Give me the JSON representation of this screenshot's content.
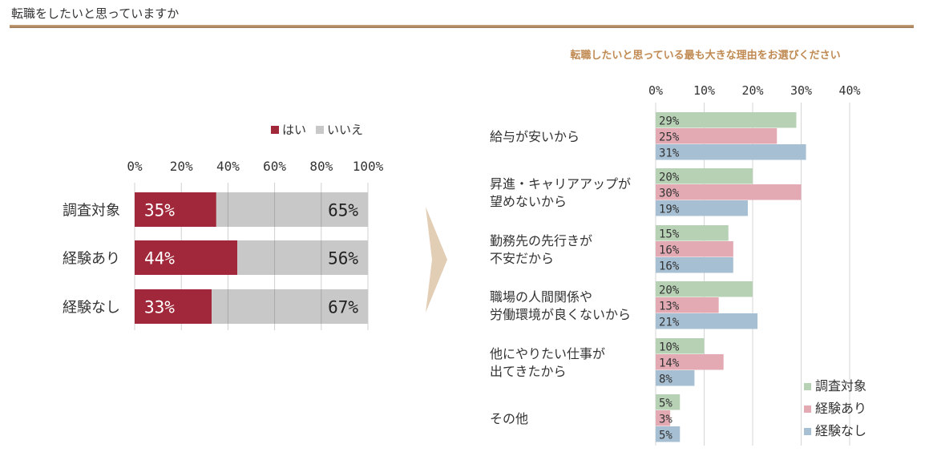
{
  "slide_title": "転職をしたいと思っていますか",
  "chevron_color": "#e2cdb5",
  "chart_data": [
    {
      "type": "bar",
      "orientation": "horizontal",
      "stacked": true,
      "title": "",
      "categories": [
        "調査対象",
        "経験あり",
        "経験なし"
      ],
      "series": [
        {
          "name": "はい",
          "values": [
            35,
            44,
            33
          ],
          "color": "#a1283a"
        },
        {
          "name": "いいえ",
          "values": [
            65,
            56,
            67
          ],
          "color": "#c8c8c8"
        }
      ],
      "value_labels": {
        "はい": [
          "35%",
          "44%",
          "33%"
        ],
        "いいえ": [
          "65%",
          "56%",
          "67%"
        ]
      },
      "xlim": [
        0,
        100
      ],
      "xticks": [
        "0%",
        "20%",
        "40%",
        "60%",
        "80%",
        "100%"
      ],
      "grid": true,
      "legend_position": "top-right"
    },
    {
      "type": "bar",
      "orientation": "horizontal",
      "stacked": false,
      "title": "転職したいと思っている最も大きな理由をお選びください",
      "categories": [
        "給与が安いから",
        "昇進・キャリアアップが\n望めないから",
        "勤務先の先行きが\n不安だから",
        "職場の人間関係や\n労働環境が良くないから",
        "他にやりたい仕事が\n出てきたから",
        "その他"
      ],
      "series": [
        {
          "name": "調査対象",
          "values": [
            29,
            20,
            15,
            20,
            10,
            5
          ],
          "color": "#b7d1b5"
        },
        {
          "name": "経験あり",
          "values": [
            25,
            30,
            16,
            13,
            14,
            3
          ],
          "color": "#e3aab4"
        },
        {
          "name": "経験なし",
          "values": [
            31,
            19,
            16,
            21,
            8,
            5
          ],
          "color": "#a6bfd3"
        }
      ],
      "value_labels": {
        "調査対象": [
          "29%",
          "20%",
          "15%",
          "20%",
          "10%",
          "5%"
        ],
        "経験あり": [
          "25%",
          "30%",
          "16%",
          "13%",
          "14%",
          "3%"
        ],
        "経験なし": [
          "31%",
          "19%",
          "16%",
          "21%",
          "8%",
          "5%"
        ]
      },
      "xlim": [
        0,
        40
      ],
      "xticks": [
        "0%",
        "10%",
        "20%",
        "30%",
        "40%"
      ],
      "grid": true,
      "legend_position": "bottom-right"
    }
  ]
}
